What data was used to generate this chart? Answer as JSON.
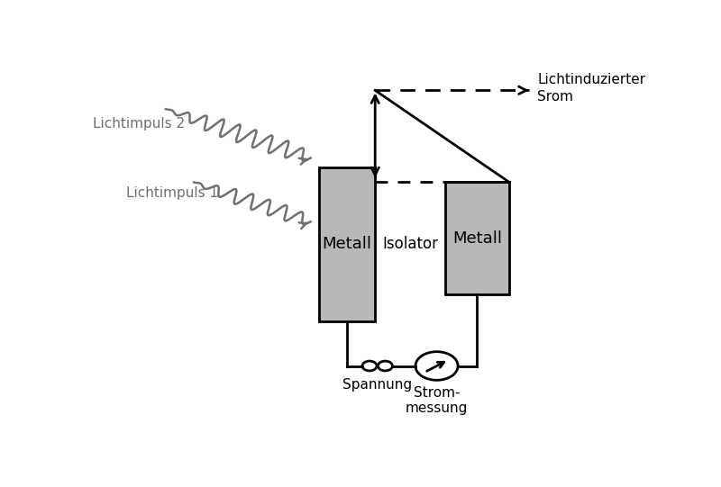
{
  "bg_color": "#ffffff",
  "gray_color": "#b8b8b8",
  "dark_gray": "#707070",
  "black": "#000000",
  "title": "Lichtinduzierter\nSrom",
  "spannung_label": "Spannung",
  "strommessung_label": "Strom-\nmessung",
  "lichtimpuls2_label": "Lichtimpuls 2",
  "lichtimpuls1_label": "Lichtimpuls 1",
  "metall_label": "Metall",
  "isolator_label": "Isolator",
  "m1x": 0.41,
  "m1y": 0.3,
  "m1w": 0.1,
  "m1h": 0.41,
  "m2x": 0.635,
  "m2y": 0.37,
  "m2w": 0.115,
  "m2h": 0.3,
  "lw": 2.0
}
